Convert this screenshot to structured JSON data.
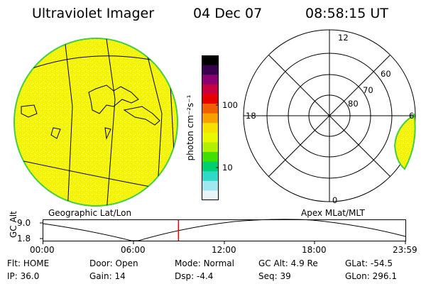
{
  "header": {
    "instrument": "Ultraviolet Imager",
    "date": "04 Dec 07",
    "time": "08:58:15 UT"
  },
  "colorbar": {
    "unit_label": "photon cm⁻²s⁻¹",
    "tick_labels": [
      "100",
      "10"
    ],
    "colors": [
      "#000000",
      "#3a0050",
      "#8a0070",
      "#c80040",
      "#e80000",
      "#f06000",
      "#f8a000",
      "#f8e000",
      "#e8f800",
      "#b0f000",
      "#40e000",
      "#00d070",
      "#30d8c8",
      "#a0e8f0",
      "#e8f4f8"
    ]
  },
  "geo_map": {
    "caption": "Geographic Lat/Lon",
    "disk_color": "#f4f400",
    "rim_color": "#40d040"
  },
  "polar_plot": {
    "caption": "Apex MLat/MLT",
    "mlt_labels": {
      "top": "12",
      "left": "18",
      "right": "6",
      "bottom": "0"
    },
    "lat_labels": [
      "60",
      "70",
      "80"
    ]
  },
  "altitude_plot": {
    "ylabel": "GC Alt",
    "y_ticks": [
      "9.0",
      "1.8"
    ],
    "x_ticks": [
      "00:00",
      "06:00",
      "12:00",
      "18:00",
      "23:59"
    ],
    "marker_time": "08:58",
    "marker_color": "#e00000"
  },
  "info": {
    "row1": [
      {
        "key": "Flt:",
        "value": "HOME"
      },
      {
        "key": "Door:",
        "value": "Open"
      },
      {
        "key": "Mode:",
        "value": "Normal"
      },
      {
        "key": "GC Alt:",
        "value": "4.9 Re"
      },
      {
        "key": "GLat:",
        "value": "-54.5"
      }
    ],
    "row2": [
      {
        "key": "IP:",
        "value": "36.0"
      },
      {
        "key": "Gain:",
        "value": "14"
      },
      {
        "key": "Dsp:",
        "value": "-4.4"
      },
      {
        "key": "Seq:",
        "value": "39"
      },
      {
        "key": "GLon:",
        "value": "296.1"
      }
    ]
  }
}
